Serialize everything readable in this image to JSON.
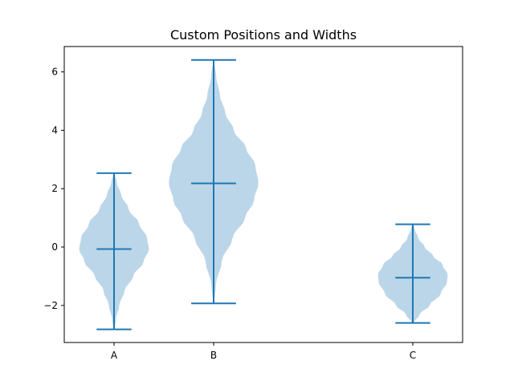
{
  "chart_data": {
    "type": "violin",
    "title": "Custom Positions and Widths",
    "xlabel": "",
    "ylabel": "",
    "categories": [
      "A",
      "B",
      "C"
    ],
    "positions": [
      1,
      2,
      4
    ],
    "widths": [
      0.7,
      0.9,
      0.7
    ],
    "xlim": [
      0.5,
      4.5
    ],
    "ylim": [
      -3.27,
      6.87
    ],
    "y_ticks": [
      -2,
      0,
      2,
      4,
      6
    ],
    "y_tick_labels": [
      "−2",
      "0",
      "2",
      "4",
      "6"
    ],
    "grid": false,
    "series": [
      {
        "category": "A",
        "min": -2.82,
        "max": 2.53,
        "median": -0.07,
        "density": [
          [
            -2.82,
            0.02
          ],
          [
            -2.5,
            0.05
          ],
          [
            -2.0,
            0.15
          ],
          [
            -1.5,
            0.3
          ],
          [
            -1.0,
            0.55
          ],
          [
            -0.5,
            0.85
          ],
          [
            -0.07,
            1.0
          ],
          [
            0.3,
            0.95
          ],
          [
            0.8,
            0.72
          ],
          [
            1.3,
            0.42
          ],
          [
            1.8,
            0.2
          ],
          [
            2.2,
            0.08
          ],
          [
            2.53,
            0.02
          ]
        ]
      },
      {
        "category": "B",
        "min": -1.93,
        "max": 6.41,
        "median": 2.18,
        "density": [
          [
            -1.93,
            0.01
          ],
          [
            -1.3,
            0.05
          ],
          [
            -0.5,
            0.18
          ],
          [
            0.3,
            0.42
          ],
          [
            1.0,
            0.7
          ],
          [
            1.6,
            0.9
          ],
          [
            2.2,
            1.0
          ],
          [
            2.8,
            0.93
          ],
          [
            3.4,
            0.72
          ],
          [
            4.0,
            0.45
          ],
          [
            4.6,
            0.26
          ],
          [
            5.2,
            0.14
          ],
          [
            5.8,
            0.06
          ],
          [
            6.41,
            0.01
          ]
        ]
      },
      {
        "category": "C",
        "min": -2.6,
        "max": 0.78,
        "median": -1.05,
        "density": [
          [
            -2.6,
            0.03
          ],
          [
            -2.3,
            0.2
          ],
          [
            -2.0,
            0.48
          ],
          [
            -1.6,
            0.8
          ],
          [
            -1.2,
            0.98
          ],
          [
            -0.95,
            1.0
          ],
          [
            -0.6,
            0.85
          ],
          [
            -0.3,
            0.58
          ],
          [
            0.0,
            0.34
          ],
          [
            0.3,
            0.16
          ],
          [
            0.6,
            0.06
          ],
          [
            0.78,
            0.02
          ]
        ]
      }
    ],
    "colors": {
      "body_fill": "#1f77b4",
      "body_opacity": 0.3,
      "line": "#1f77b4",
      "axes": "#000000"
    }
  }
}
